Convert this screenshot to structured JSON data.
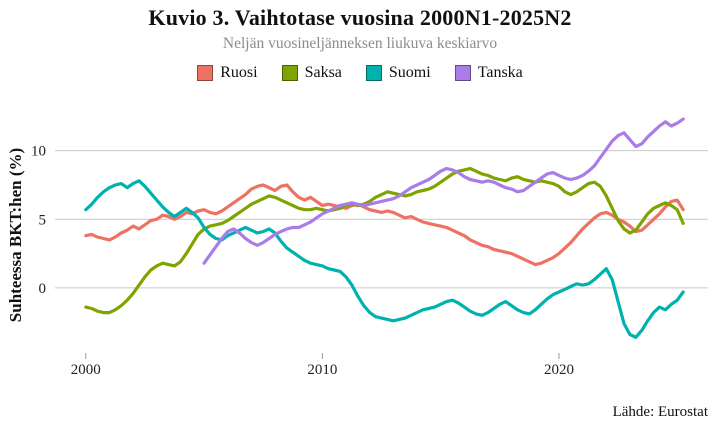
{
  "chart_data": {
    "type": "line",
    "title": "Kuvio 3. Vaihtotase vuosina 2000N1-2025N2",
    "subtitle": "Neljän vuosineljänneksen liukuva keskiarvo",
    "ylabel": "Suhteessa BKT:hen (%)",
    "source": "Lähde: Eurostat",
    "x_start": 2000.0,
    "x_step": 0.25,
    "x_ticks": [
      2000,
      2010,
      2020
    ],
    "y_ticks": [
      0,
      5,
      10
    ],
    "xlim": [
      1998.7,
      2026.3
    ],
    "ylim": [
      -4.6,
      13.4
    ],
    "grid": "horizontal-only",
    "legend_position": "top",
    "gridline_color": "#c9c9c9",
    "series": [
      {
        "name": "Ruosi",
        "color": "#ee7264",
        "values": [
          3.8,
          3.9,
          3.7,
          3.6,
          3.5,
          3.7,
          4.0,
          4.2,
          4.5,
          4.3,
          4.6,
          4.9,
          5.0,
          5.3,
          5.2,
          5.0,
          5.2,
          5.5,
          5.4,
          5.6,
          5.7,
          5.5,
          5.4,
          5.6,
          5.9,
          6.2,
          6.5,
          6.8,
          7.2,
          7.4,
          7.5,
          7.3,
          7.1,
          7.4,
          7.5,
          7.0,
          6.6,
          6.4,
          6.6,
          6.3,
          6.0,
          6.1,
          6.0,
          5.9,
          5.8,
          6.0,
          6.1,
          5.9,
          5.7,
          5.6,
          5.5,
          5.6,
          5.5,
          5.3,
          5.1,
          5.2,
          5.0,
          4.8,
          4.7,
          4.6,
          4.5,
          4.4,
          4.2,
          4.0,
          3.8,
          3.5,
          3.3,
          3.1,
          3.0,
          2.8,
          2.7,
          2.6,
          2.5,
          2.3,
          2.1,
          1.9,
          1.7,
          1.8,
          2.0,
          2.2,
          2.5,
          2.9,
          3.3,
          3.8,
          4.3,
          4.7,
          5.1,
          5.4,
          5.5,
          5.3,
          5.0,
          4.8,
          4.5,
          4.1,
          4.2,
          4.6,
          5.0,
          5.4,
          5.9,
          6.3,
          6.4,
          5.7
        ]
      },
      {
        "name": "Saksa",
        "color": "#7fa400",
        "values": [
          -1.4,
          -1.5,
          -1.7,
          -1.8,
          -1.8,
          -1.6,
          -1.3,
          -0.9,
          -0.4,
          0.2,
          0.8,
          1.3,
          1.6,
          1.8,
          1.7,
          1.6,
          1.9,
          2.5,
          3.2,
          3.9,
          4.3,
          4.5,
          4.6,
          4.7,
          4.9,
          5.2,
          5.5,
          5.8,
          6.1,
          6.3,
          6.5,
          6.7,
          6.6,
          6.4,
          6.2,
          6.0,
          5.8,
          5.7,
          5.7,
          5.8,
          5.7,
          5.6,
          5.7,
          5.8,
          6.0,
          6.1,
          6.0,
          6.1,
          6.3,
          6.6,
          6.8,
          7.0,
          6.9,
          6.8,
          6.7,
          6.8,
          7.0,
          7.1,
          7.2,
          7.4,
          7.7,
          8.0,
          8.3,
          8.5,
          8.6,
          8.7,
          8.5,
          8.3,
          8.2,
          8.0,
          7.9,
          7.8,
          8.0,
          8.1,
          7.9,
          7.8,
          7.7,
          7.8,
          7.7,
          7.6,
          7.4,
          7.0,
          6.8,
          7.0,
          7.3,
          7.6,
          7.7,
          7.4,
          6.7,
          5.8,
          4.9,
          4.3,
          4.0,
          4.2,
          4.8,
          5.4,
          5.8,
          6.0,
          6.2,
          6.0,
          5.7,
          4.7
        ]
      },
      {
        "name": "Suomi",
        "color": "#00b2ae",
        "values": [
          5.7,
          6.1,
          6.6,
          7.0,
          7.3,
          7.5,
          7.6,
          7.3,
          7.6,
          7.8,
          7.4,
          6.9,
          6.4,
          5.9,
          5.5,
          5.2,
          5.5,
          5.8,
          5.5,
          5.1,
          4.4,
          3.9,
          3.6,
          3.5,
          3.8,
          4.0,
          4.2,
          4.4,
          4.2,
          4.0,
          4.1,
          4.3,
          4.0,
          3.4,
          2.9,
          2.6,
          2.3,
          2.0,
          1.8,
          1.7,
          1.6,
          1.4,
          1.3,
          1.2,
          0.8,
          0.2,
          -0.6,
          -1.3,
          -1.8,
          -2.1,
          -2.2,
          -2.3,
          -2.4,
          -2.3,
          -2.2,
          -2.0,
          -1.8,
          -1.6,
          -1.5,
          -1.4,
          -1.2,
          -1.0,
          -0.9,
          -1.1,
          -1.4,
          -1.7,
          -1.9,
          -2.0,
          -1.8,
          -1.5,
          -1.2,
          -1.0,
          -1.3,
          -1.6,
          -1.8,
          -1.9,
          -1.6,
          -1.2,
          -0.8,
          -0.5,
          -0.3,
          -0.1,
          0.1,
          0.3,
          0.2,
          0.3,
          0.6,
          1.0,
          1.4,
          0.6,
          -1.0,
          -2.6,
          -3.4,
          -3.6,
          -3.1,
          -2.4,
          -1.8,
          -1.4,
          -1.6,
          -1.2,
          -0.9,
          -0.3
        ]
      },
      {
        "name": "Tanska",
        "color": "#a97ce8",
        "values": [
          null,
          null,
          null,
          null,
          null,
          null,
          null,
          null,
          null,
          null,
          null,
          null,
          null,
          null,
          null,
          null,
          null,
          null,
          null,
          null,
          1.8,
          2.4,
          3.0,
          3.6,
          4.1,
          4.3,
          4.0,
          3.6,
          3.3,
          3.1,
          3.3,
          3.6,
          3.9,
          4.1,
          4.3,
          4.4,
          4.4,
          4.6,
          4.8,
          5.1,
          5.4,
          5.6,
          5.8,
          6.0,
          6.1,
          6.2,
          6.1,
          6.0,
          6.1,
          6.2,
          6.3,
          6.4,
          6.5,
          6.7,
          7.0,
          7.3,
          7.5,
          7.7,
          7.9,
          8.2,
          8.5,
          8.7,
          8.6,
          8.4,
          8.1,
          7.9,
          7.8,
          7.7,
          7.8,
          7.7,
          7.5,
          7.3,
          7.2,
          7.0,
          7.1,
          7.4,
          7.7,
          8.0,
          8.3,
          8.4,
          8.2,
          8.0,
          7.9,
          8.0,
          8.2,
          8.5,
          8.9,
          9.5,
          10.1,
          10.7,
          11.1,
          11.3,
          10.8,
          10.3,
          10.5,
          11.0,
          11.4,
          11.8,
          12.1,
          11.8,
          12.0,
          12.3
        ]
      }
    ]
  }
}
